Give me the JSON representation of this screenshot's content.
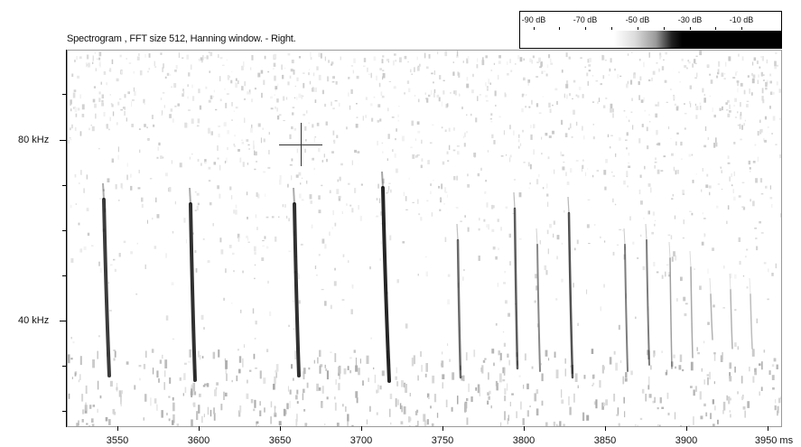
{
  "title": "Spectrogram , FFT size 512, Hanning window. - Right.",
  "legend": {
    "labels": [
      "-90 dB",
      "-70 dB",
      "-50 dB",
      "-30 dB",
      "-10 dB"
    ]
  },
  "y_axis": {
    "labels": [
      "80 kHz",
      "40 kHz"
    ]
  },
  "x_axis": {
    "labels": [
      "3550",
      "3600",
      "3650",
      "3700",
      "3750",
      "3800",
      "3850",
      "3900",
      "3950 ms"
    ]
  },
  "colors": {
    "background": "#ffffff",
    "ink": "#000000",
    "frame": "#9a9a9a"
  }
}
